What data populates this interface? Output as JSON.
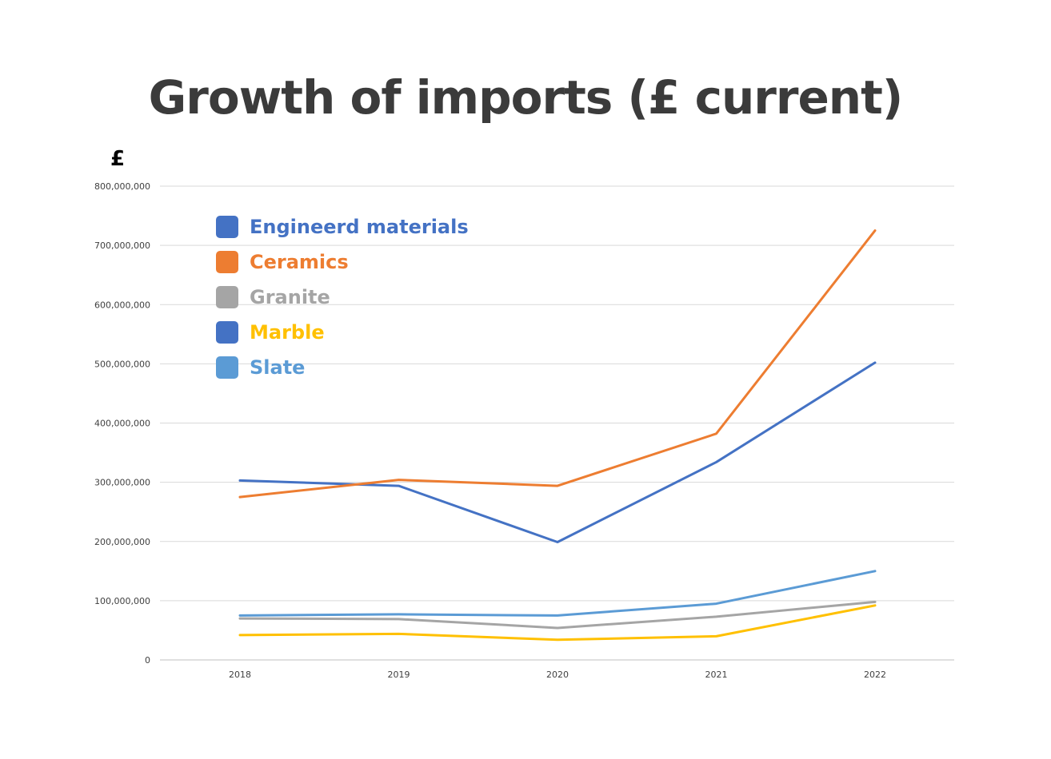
{
  "title": "Growth of imports (£ current)",
  "chart_data": {
    "type": "line",
    "title": "Growth of imports (£ current)",
    "ylabel": "£",
    "xlabel": "",
    "categories": [
      "2018",
      "2019",
      "2020",
      "2021",
      "2022"
    ],
    "ylim": [
      0,
      800000000
    ],
    "yticks": [
      0,
      100000000,
      200000000,
      300000000,
      400000000,
      500000000,
      600000000,
      700000000,
      800000000
    ],
    "ytick_labels": [
      "0",
      "100,000,000",
      "200,000,000",
      "300,000,000",
      "400,000,000",
      "500,000,000",
      "600,000,000",
      "700,000,000",
      "800,000,000"
    ],
    "grid": "horizontal",
    "legend_position": "top-left",
    "series": [
      {
        "name": "Engineerd materials",
        "color": "#4472c4",
        "values": [
          303000000,
          294000000,
          199000000,
          334000000,
          502000000
        ]
      },
      {
        "name": "Ceramics",
        "color": "#ed7d31",
        "values": [
          275000000,
          304000000,
          294000000,
          382000000,
          725000000
        ]
      },
      {
        "name": "Granite",
        "color": "#a5a5a5",
        "values": [
          70000000,
          69000000,
          54000000,
          73000000,
          98000000
        ]
      },
      {
        "name": "Marble",
        "color": "#ffc000",
        "values": [
          42000000,
          44000000,
          34000000,
          40000000,
          92000000
        ]
      },
      {
        "name": "Slate",
        "color": "#5b9bd5",
        "values": [
          75000000,
          77000000,
          75000000,
          95000000,
          150000000
        ]
      }
    ],
    "legend_swatch_colors": [
      "#4472c4",
      "#ed7d31",
      "#a5a5a5",
      "#4472c4",
      "#5b9bd5"
    ]
  }
}
